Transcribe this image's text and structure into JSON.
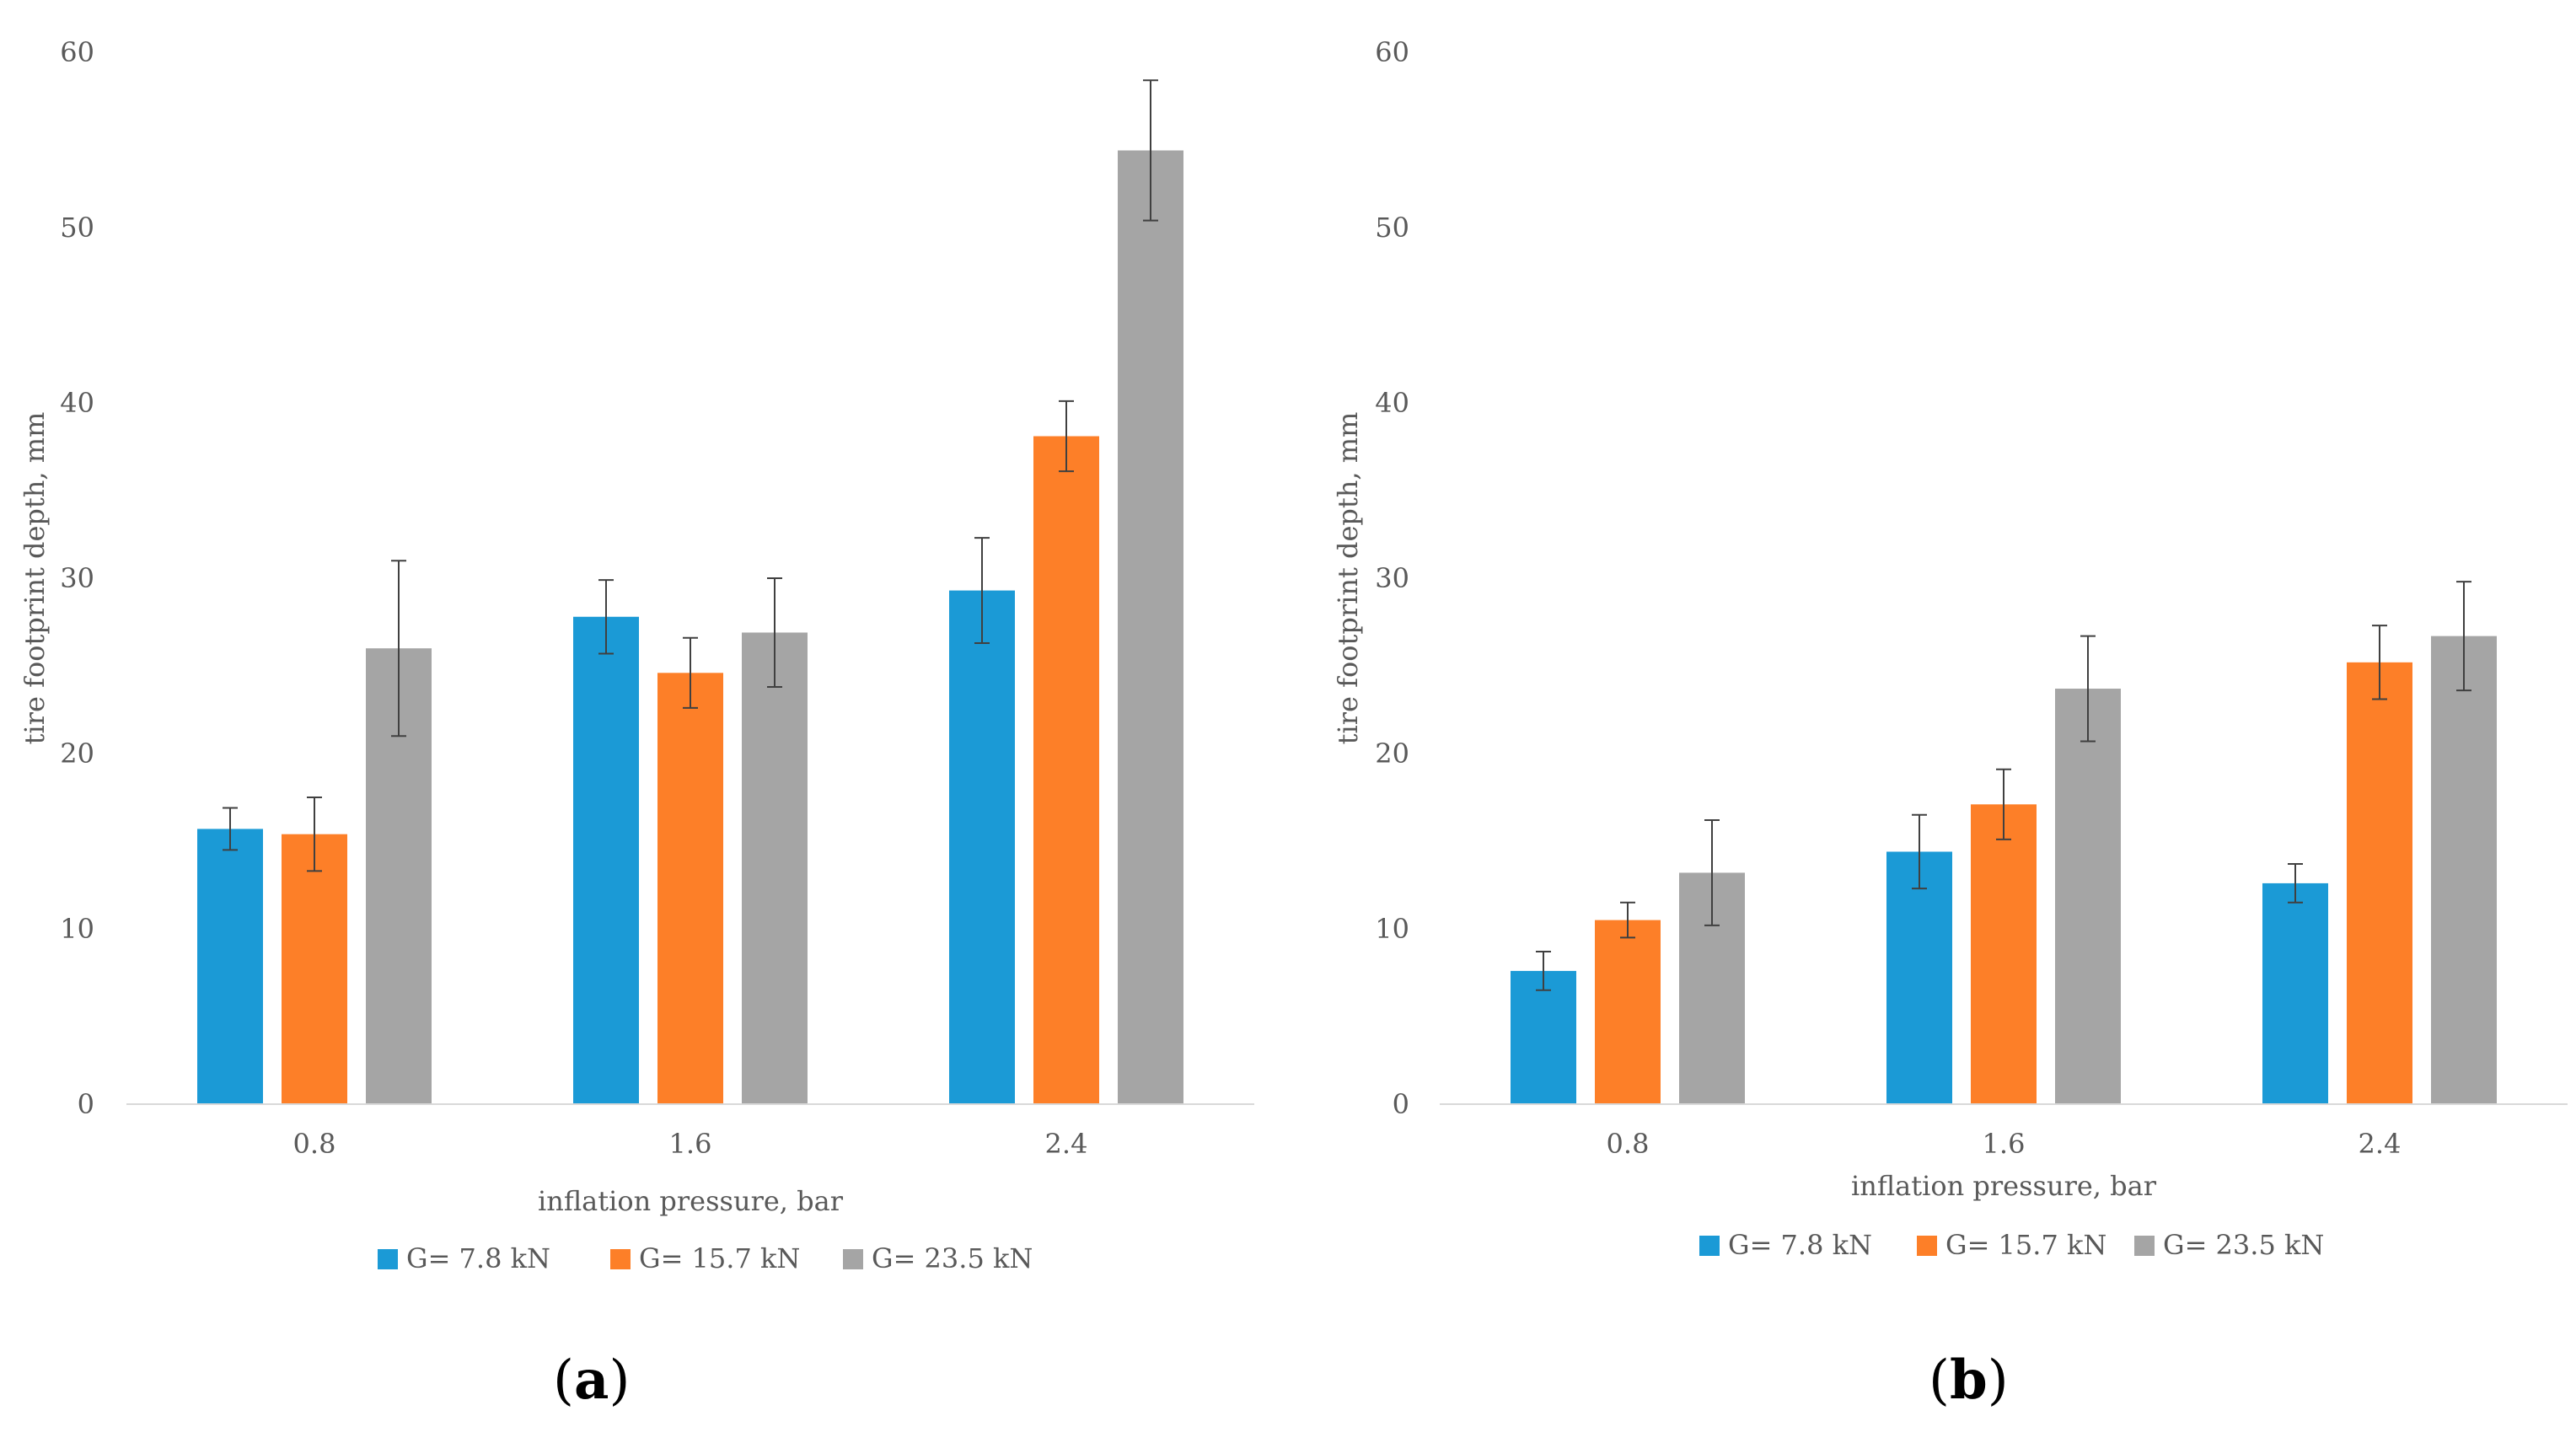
{
  "chart_data": [
    {
      "type": "bar",
      "panel_label": "a",
      "ylabel": "tire footprint depth, mm",
      "xlabel": "inflation pressure, bar",
      "categories": [
        "0.8",
        "1.6",
        "2.4"
      ],
      "ylim": [
        0,
        60
      ],
      "yticks": [
        "0",
        "10",
        "20",
        "30",
        "40",
        "50",
        "60"
      ],
      "grid": false,
      "legend_position": "bottom",
      "series": [
        {
          "name": "G= 7.8 kN",
          "color": "#1b9ad6",
          "values": [
            15.7,
            27.8,
            29.3
          ],
          "errors": [
            1.2,
            2.1,
            3.0
          ]
        },
        {
          "name": "G= 15.7 kN",
          "color": "#fd7f28",
          "values": [
            15.4,
            24.6,
            38.1
          ],
          "errors": [
            2.1,
            2.0,
            2.0
          ]
        },
        {
          "name": "G= 23.5 kN",
          "color": "#a5a5a5",
          "values": [
            26.0,
            26.9,
            54.4
          ],
          "errors": [
            5.0,
            3.1,
            4.0
          ]
        }
      ]
    },
    {
      "type": "bar",
      "panel_label": "b",
      "ylabel": "tire footprint depth, mm",
      "xlabel": "inflation pressure, bar",
      "categories": [
        "0.8",
        "1.6",
        "2.4"
      ],
      "ylim": [
        0,
        60
      ],
      "yticks": [
        "0",
        "10",
        "20",
        "30",
        "40",
        "50",
        "60"
      ],
      "grid": false,
      "legend_position": "bottom",
      "series": [
        {
          "name": "G= 7.8 kN",
          "color": "#1b9ad6",
          "values": [
            7.6,
            14.4,
            12.6
          ],
          "errors": [
            1.1,
            2.1,
            1.1
          ]
        },
        {
          "name": "G= 15.7 kN",
          "color": "#fd7f28",
          "values": [
            10.5,
            17.1,
            25.2
          ],
          "errors": [
            1.0,
            2.0,
            2.1
          ]
        },
        {
          "name": "G= 23.5 kN",
          "color": "#a5a5a5",
          "values": [
            13.2,
            23.7,
            26.7
          ],
          "errors": [
            3.0,
            3.0,
            3.1
          ]
        }
      ]
    }
  ]
}
